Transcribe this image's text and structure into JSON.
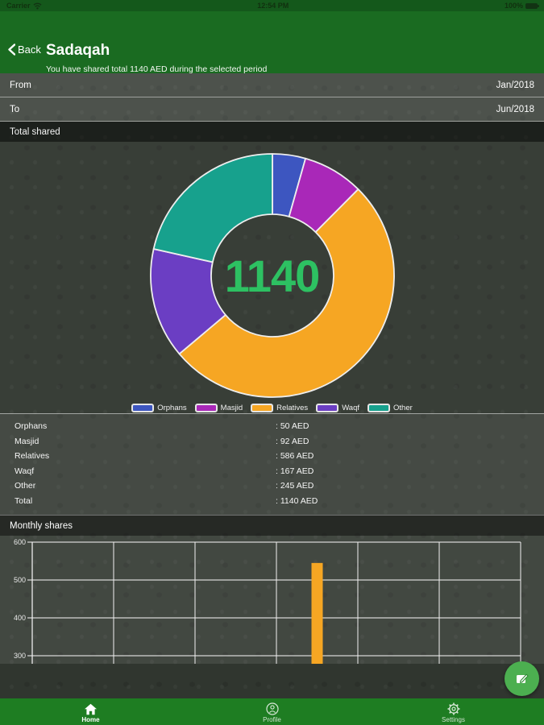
{
  "status_bar": {
    "carrier": "Carrier",
    "time": "12:54 PM",
    "battery": "100%"
  },
  "header": {
    "back_label": "Back",
    "title": "Sadaqah",
    "subtitle": "You have shared total 1140 AED during the selected period"
  },
  "filters": {
    "from_label": "From",
    "from_value": "Jan/2018",
    "to_label": "To",
    "to_value": "Jun/2018"
  },
  "sections": {
    "total_shared": "Total shared",
    "monthly_shares": "Monthly shares"
  },
  "chart_data": [
    {
      "type": "pie",
      "subtype": "donut",
      "title": "Total shared",
      "center_label": "1140",
      "center_label_color": "#2dc162",
      "categories": [
        "Orphans",
        "Masjid",
        "Relatives",
        "Waqf",
        "Other"
      ],
      "values": [
        50,
        92,
        586,
        167,
        245
      ],
      "colors": [
        "#3d56c0",
        "#a928b8",
        "#f6a623",
        "#6b3ec3",
        "#17a18d"
      ],
      "total": 1140,
      "start_angle_deg": 0,
      "direction": "clockwise",
      "legend_position": "bottom"
    },
    {
      "type": "bar",
      "title": "Monthly shares",
      "bar_color": "#f6a623",
      "y_ticks": [
        600,
        500,
        400,
        300
      ],
      "visible_y_range": [
        300,
        600
      ],
      "columns": 6,
      "grid": true,
      "series": [
        {
          "name": "Monthly shares",
          "values": [
            null,
            null,
            null,
            545,
            null,
            null
          ]
        }
      ]
    }
  ],
  "summary": {
    "rows": [
      {
        "label": "Orphans",
        "value": ": 50 AED"
      },
      {
        "label": "Masjid",
        "value": ": 92 AED"
      },
      {
        "label": "Relatives",
        "value": ": 586 AED"
      },
      {
        "label": "Waqf",
        "value": ": 167 AED"
      },
      {
        "label": "Other",
        "value": ": 245 AED"
      },
      {
        "label": "Total",
        "value": ": 1140 AED"
      }
    ]
  },
  "fab": {
    "icon": "edit-icon",
    "color": "#4caf50"
  },
  "tab_bar": {
    "items": [
      {
        "label": "Home",
        "icon": "home-icon",
        "active": true
      },
      {
        "label": "Profile",
        "icon": "profile-icon",
        "active": false
      },
      {
        "label": "Settings",
        "icon": "settings-icon",
        "active": false
      }
    ]
  },
  "theme": {
    "status_bar_green": "#14581b",
    "header_green": "#1a6b21",
    "tab_bar_green": "#1e7d22",
    "fab_green": "#4caf50",
    "background": "#30362f",
    "center_value_green": "#2dc162"
  }
}
